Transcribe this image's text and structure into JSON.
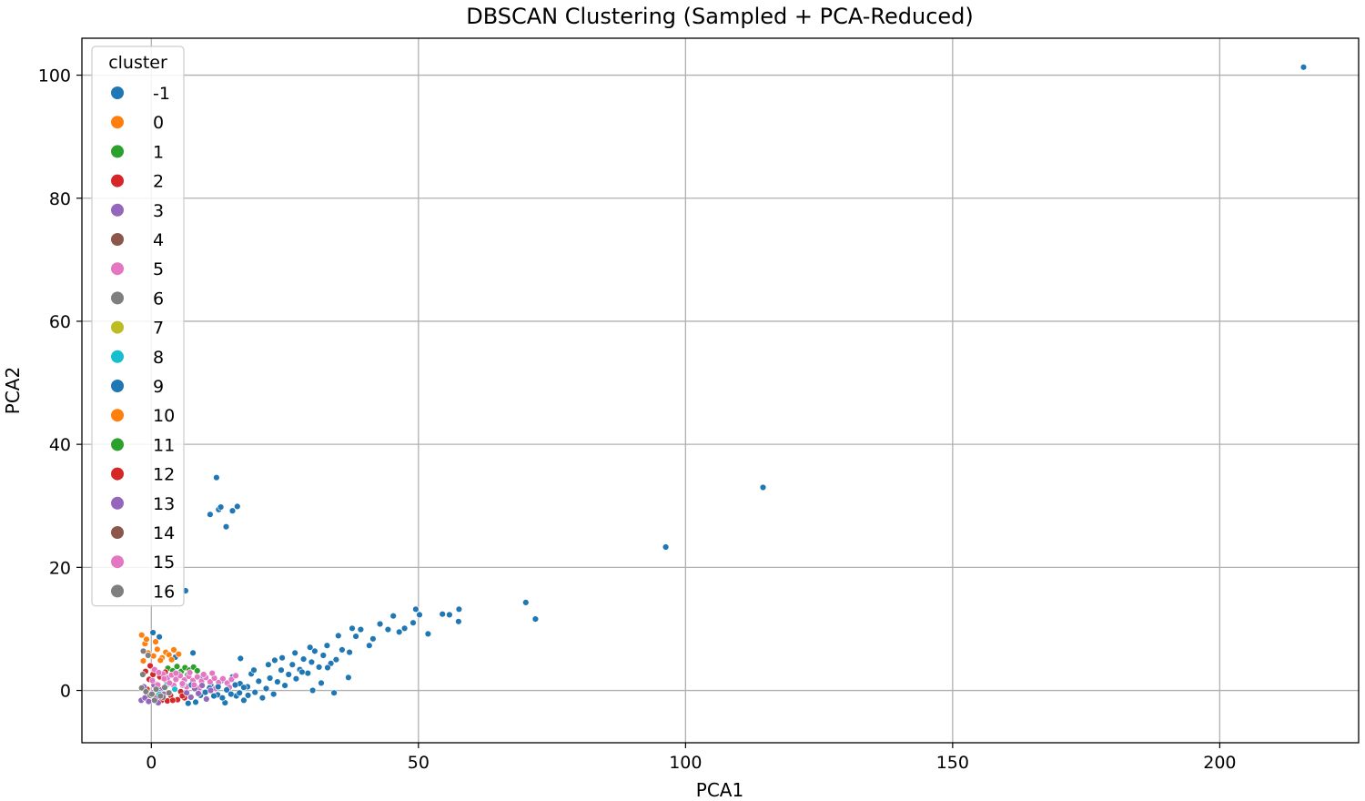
{
  "chart_data": {
    "type": "scatter",
    "title": "DBSCAN Clustering (Sampled + PCA-Reduced)",
    "xlabel": "PCA1",
    "ylabel": "PCA2",
    "xlim": [
      -13,
      226
    ],
    "ylim": [
      -8.5,
      106
    ],
    "xticks": [
      0,
      50,
      100,
      150,
      200
    ],
    "yticks": [
      0,
      20,
      40,
      60,
      80,
      100
    ],
    "grid": true,
    "legend": {
      "title": "cluster",
      "placement": "upper-left",
      "entries": [
        {
          "label": "-1",
          "color": "#1f77b4"
        },
        {
          "label": "0",
          "color": "#ff7f0e"
        },
        {
          "label": "1",
          "color": "#2ca02c"
        },
        {
          "label": "2",
          "color": "#d62728"
        },
        {
          "label": "3",
          "color": "#9467bd"
        },
        {
          "label": "4",
          "color": "#8c564b"
        },
        {
          "label": "5",
          "color": "#e377c2"
        },
        {
          "label": "6",
          "color": "#7f7f7f"
        },
        {
          "label": "7",
          "color": "#bcbd22"
        },
        {
          "label": "8",
          "color": "#17becf"
        },
        {
          "label": "9",
          "color": "#1f77b4"
        },
        {
          "label": "10",
          "color": "#ff7f0e"
        },
        {
          "label": "11",
          "color": "#2ca02c"
        },
        {
          "label": "12",
          "color": "#d62728"
        },
        {
          "label": "13",
          "color": "#9467bd"
        },
        {
          "label": "14",
          "color": "#8c564b"
        },
        {
          "label": "15",
          "color": "#e377c2"
        },
        {
          "label": "16",
          "color": "#7f7f7f"
        }
      ]
    },
    "series": [
      {
        "cluster": "-1",
        "color": "#1f77b4",
        "points": [
          [
            215.7,
            101.3
          ],
          [
            114.5,
            33.0
          ],
          [
            96.3,
            23.3
          ],
          [
            70.1,
            14.3
          ],
          [
            71.9,
            11.6
          ],
          [
            57.6,
            13.2
          ],
          [
            57.5,
            11.2
          ],
          [
            55.8,
            12.3
          ],
          [
            54.5,
            12.4
          ],
          [
            50.2,
            12.3
          ],
          [
            49.5,
            13.2
          ],
          [
            51.8,
            9.2
          ],
          [
            49.0,
            11.0
          ],
          [
            47.4,
            10.1
          ],
          [
            46.4,
            9.5
          ],
          [
            45.3,
            12.1
          ],
          [
            44.3,
            9.9
          ],
          [
            42.8,
            10.8
          ],
          [
            41.5,
            8.4
          ],
          [
            40.8,
            7.3
          ],
          [
            39.2,
            9.9
          ],
          [
            38.3,
            8.8
          ],
          [
            37.6,
            10.1
          ],
          [
            37.1,
            6.2
          ],
          [
            36.9,
            2.1
          ],
          [
            35.7,
            6.6
          ],
          [
            35.0,
            8.9
          ],
          [
            34.6,
            5.0
          ],
          [
            34.2,
            -0.4
          ],
          [
            33.6,
            4.4
          ],
          [
            32.9,
            7.3
          ],
          [
            32.2,
            5.7
          ],
          [
            31.4,
            3.8
          ],
          [
            30.6,
            6.4
          ],
          [
            30.0,
            4.6
          ],
          [
            29.3,
            2.8
          ],
          [
            28.5,
            5.1
          ],
          [
            27.8,
            3.4
          ],
          [
            27.1,
            1.9
          ],
          [
            26.4,
            4.2
          ],
          [
            25.7,
            2.6
          ],
          [
            25.0,
            0.8
          ],
          [
            24.3,
            3.3
          ],
          [
            23.6,
            1.4
          ],
          [
            22.9,
            -0.6
          ],
          [
            22.2,
            2.0
          ],
          [
            21.5,
            0.3
          ],
          [
            20.8,
            -1.2
          ],
          [
            20.1,
            1.5
          ],
          [
            19.4,
            -0.3
          ],
          [
            18.7,
            2.7
          ],
          [
            18.0,
            0.6
          ],
          [
            17.3,
            -1.6
          ],
          [
            16.6,
            1.1
          ],
          [
            15.9,
            -0.9
          ],
          [
            15.2,
            2.2
          ],
          [
            14.5,
            0.2
          ],
          [
            13.8,
            -2.0
          ],
          [
            13.1,
            1.6
          ],
          [
            12.4,
            -0.7
          ],
          [
            16.7,
            5.2
          ],
          [
            12.2,
            34.6
          ],
          [
            16.1,
            29.9
          ],
          [
            15.2,
            29.2
          ],
          [
            12.6,
            29.4
          ],
          [
            13.0,
            29.8
          ],
          [
            11.0,
            28.6
          ],
          [
            14.0,
            26.6
          ],
          [
            6.4,
            16.2
          ],
          [
            0.3,
            9.4
          ],
          [
            1.5,
            8.7
          ],
          [
            7.8,
            6.1
          ],
          [
            4.5,
            5.4
          ],
          [
            9.6,
            2.4
          ],
          [
            11.1,
            0.9
          ],
          [
            26.9,
            6.1
          ],
          [
            29.7,
            7.0
          ],
          [
            24.5,
            5.3
          ],
          [
            21.9,
            4.2
          ],
          [
            19.2,
            3.3
          ],
          [
            23.1,
            4.9
          ],
          [
            28.2,
            3.0
          ],
          [
            31.8,
            1.2
          ],
          [
            33.0,
            3.7
          ],
          [
            30.2,
            0.0
          ]
        ]
      },
      {
        "cluster": "0",
        "color": "#ff7f0e",
        "points": [
          [
            -1.8,
            9.0
          ],
          [
            -1.2,
            7.6
          ],
          [
            -0.6,
            6.1
          ],
          [
            0.4,
            5.6
          ],
          [
            1.1,
            6.7
          ],
          [
            2.0,
            5.3
          ],
          [
            2.7,
            6.2
          ],
          [
            3.3,
            5.8
          ],
          [
            4.2,
            6.6
          ],
          [
            5.1,
            5.9
          ],
          [
            -1.5,
            4.8
          ],
          [
            0.8,
            7.9
          ],
          [
            1.7,
            4.9
          ],
          [
            3.8,
            5.0
          ],
          [
            -0.9,
            8.3
          ]
        ]
      },
      {
        "cluster": "1",
        "color": "#2ca02c",
        "points": [
          [
            3.1,
            3.6
          ],
          [
            4.0,
            3.2
          ],
          [
            4.8,
            3.9
          ],
          [
            5.6,
            3.1
          ],
          [
            6.3,
            3.7
          ],
          [
            7.1,
            3.3
          ],
          [
            7.9,
            3.8
          ],
          [
            8.6,
            3.2
          ],
          [
            5.2,
            2.6
          ],
          [
            6.8,
            2.5
          ]
        ]
      },
      {
        "cluster": "2",
        "color": "#d62728",
        "points": [
          [
            -1.1,
            3.1
          ],
          [
            -0.4,
            1.8
          ],
          [
            0.3,
            2.6
          ],
          [
            1.0,
            1.0
          ],
          [
            1.6,
            2.2
          ],
          [
            2.3,
            0.4
          ],
          [
            2.9,
            1.5
          ],
          [
            3.6,
            -0.8
          ],
          [
            4.2,
            0.7
          ],
          [
            4.9,
            -1.5
          ],
          [
            5.5,
            -0.2
          ],
          [
            6.2,
            -1.2
          ],
          [
            -0.8,
            0.2
          ],
          [
            0.6,
            -0.9
          ],
          [
            1.9,
            -1.6
          ],
          [
            3.0,
            -1.7
          ],
          [
            4.0,
            -1.6
          ],
          [
            5.8,
            -0.9
          ],
          [
            -0.2,
            4.0
          ],
          [
            2.6,
            3.0
          ]
        ]
      },
      {
        "cluster": "3",
        "color": "#9467bd",
        "points": [
          [
            -1.9,
            -1.6
          ],
          [
            -1.2,
            -1.2
          ],
          [
            -0.5,
            -1.8
          ],
          [
            0.2,
            -0.4
          ],
          [
            0.9,
            -1.3
          ],
          [
            1.6,
            0.1
          ],
          [
            2.3,
            -0.6
          ],
          [
            -1.4,
            0.6
          ],
          [
            0.5,
            0.9
          ],
          [
            1.3,
            -2.0
          ]
        ]
      },
      {
        "cluster": "5",
        "color": "#e377c2",
        "points": [
          [
            2.2,
            2.7
          ],
          [
            3.0,
            2.0
          ],
          [
            3.8,
            2.5
          ],
          [
            4.6,
            1.8
          ],
          [
            5.4,
            2.4
          ],
          [
            6.2,
            1.7
          ],
          [
            7.0,
            2.3
          ],
          [
            7.8,
            1.6
          ],
          [
            8.6,
            2.2
          ],
          [
            9.4,
            1.5
          ],
          [
            10.2,
            2.1
          ],
          [
            11.0,
            1.4
          ],
          [
            11.8,
            2.0
          ],
          [
            12.6,
            1.3
          ],
          [
            13.4,
            1.9
          ],
          [
            14.2,
            1.2
          ],
          [
            15.0,
            1.8
          ],
          [
            15.8,
            2.4
          ],
          [
            0.6,
            3.4
          ],
          [
            1.4,
            2.9
          ],
          [
            4.2,
            0.8
          ],
          [
            6.6,
            0.6
          ],
          [
            9.0,
            0.4
          ],
          [
            12.0,
            0.3
          ],
          [
            14.6,
            0.5
          ]
        ]
      },
      {
        "cluster": "6",
        "color": "#7f7f7f",
        "points": [
          [
            -1.8,
            0.4
          ],
          [
            -1.0,
            -0.2
          ],
          [
            -0.2,
            -0.8
          ],
          [
            0.6,
            -1.6
          ],
          [
            1.4,
            -0.3
          ],
          [
            2.2,
            -1.1
          ],
          [
            -1.6,
            2.6
          ],
          [
            -0.6,
            5.7
          ],
          [
            -1.5,
            6.4
          ]
        ]
      },
      {
        "cluster": "8",
        "color": "#17becf",
        "points": [
          [
            1.5,
            -0.6
          ],
          [
            2.8,
            0.8
          ],
          [
            4.4,
            0.2
          ],
          [
            6.0,
            1.0
          ]
        ]
      },
      {
        "cluster": "9",
        "color": "#1f77b4",
        "points": [
          [
            9.2,
            -0.8
          ],
          [
            10.1,
            -0.3
          ],
          [
            10.9,
            0.4
          ],
          [
            11.7,
            -0.9
          ],
          [
            12.5,
            0.6
          ],
          [
            13.3,
            -1.2
          ],
          [
            14.1,
            0.1
          ],
          [
            14.9,
            -0.6
          ],
          [
            15.7,
            0.9
          ],
          [
            16.5,
            -0.4
          ],
          [
            17.3,
            0.5
          ],
          [
            18.1,
            -0.8
          ],
          [
            6.9,
            -2.1
          ],
          [
            8.3,
            -1.9
          ],
          [
            7.5,
            0.9
          ]
        ]
      },
      {
        "cluster": "13",
        "color": "#9467bd",
        "points": [
          [
            7.4,
            -1.1
          ],
          [
            8.1,
            0.3
          ],
          [
            8.8,
            -0.5
          ],
          [
            9.5,
            0.8
          ],
          [
            10.3,
            -1.4
          ],
          [
            11.1,
            0.0
          ],
          [
            5.8,
            0.9
          ],
          [
            6.6,
            -0.4
          ]
        ]
      },
      {
        "cluster": "15",
        "color": "#e377c2",
        "points": [
          [
            0.2,
            1.6
          ],
          [
            1.2,
            0.9
          ],
          [
            2.4,
            1.9
          ],
          [
            3.4,
            1.2
          ],
          [
            4.6,
            2.8
          ],
          [
            5.8,
            1.1
          ],
          [
            7.2,
            2.9
          ],
          [
            8.0,
            0.9
          ],
          [
            9.8,
            2.6
          ],
          [
            11.4,
            2.8
          ]
        ]
      },
      {
        "cluster": "16",
        "color": "#7f7f7f",
        "points": [
          [
            0.1,
            -0.6
          ],
          [
            0.9,
            0.2
          ],
          [
            1.7,
            -0.9
          ],
          [
            2.5,
            0.5
          ],
          [
            3.3,
            -0.4
          ]
        ]
      }
    ]
  }
}
